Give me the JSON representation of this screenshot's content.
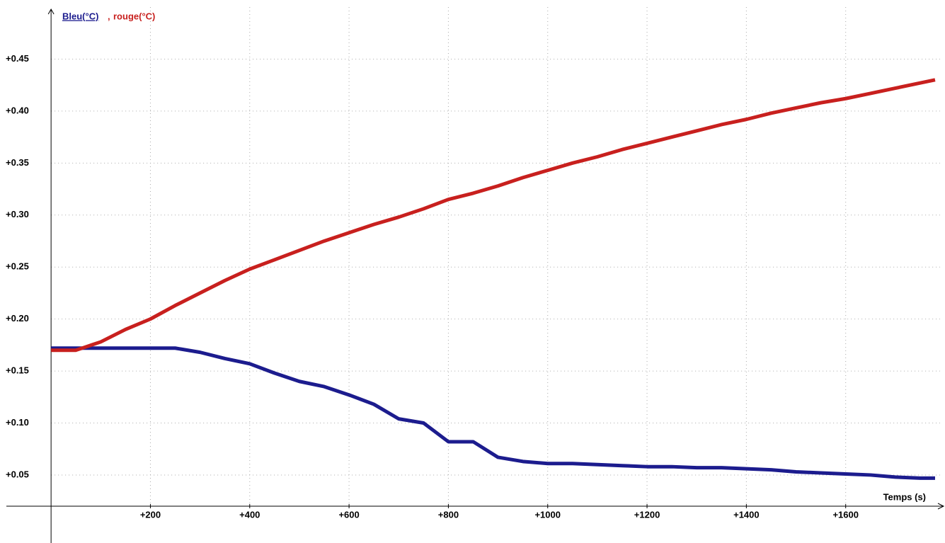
{
  "chart_data": {
    "type": "line",
    "xlabel": "Temps (s)",
    "ylabel_separator": ", ",
    "x": [
      0,
      50,
      100,
      150,
      200,
      250,
      300,
      350,
      400,
      450,
      500,
      550,
      600,
      650,
      700,
      750,
      800,
      850,
      900,
      950,
      1000,
      1050,
      1100,
      1150,
      1200,
      1250,
      1300,
      1350,
      1400,
      1450,
      1500,
      1550,
      1600,
      1650,
      1700,
      1750,
      1780
    ],
    "series": [
      {
        "name": "Bleu(°C)",
        "color": "#1c1c8e",
        "values": [
          0.172,
          0.172,
          0.172,
          0.172,
          0.172,
          0.172,
          0.168,
          0.162,
          0.157,
          0.148,
          0.14,
          0.135,
          0.127,
          0.118,
          0.104,
          0.1,
          0.082,
          0.082,
          0.067,
          0.063,
          0.061,
          0.061,
          0.06,
          0.059,
          0.058,
          0.058,
          0.057,
          0.057,
          0.056,
          0.055,
          0.053,
          0.052,
          0.051,
          0.05,
          0.048,
          0.047,
          0.047
        ]
      },
      {
        "name": "rouge(°C)",
        "color": "#c8201e",
        "values": [
          0.17,
          0.17,
          0.178,
          0.19,
          0.2,
          0.213,
          0.225,
          0.237,
          0.248,
          0.257,
          0.266,
          0.275,
          0.283,
          0.291,
          0.298,
          0.306,
          0.315,
          0.321,
          0.328,
          0.336,
          0.343,
          0.35,
          0.356,
          0.363,
          0.369,
          0.375,
          0.381,
          0.387,
          0.392,
          0.398,
          0.403,
          0.408,
          0.412,
          0.417,
          0.422,
          0.427,
          0.43
        ]
      }
    ],
    "xlim": [
      -90,
      1790
    ],
    "ylim": [
      0.02,
      0.5
    ],
    "xticks": [
      {
        "value": 200,
        "label": "+200"
      },
      {
        "value": 400,
        "label": "+400"
      },
      {
        "value": 600,
        "label": "+600"
      },
      {
        "value": 800,
        "label": "+800"
      },
      {
        "value": 1000,
        "label": "+1000"
      },
      {
        "value": 1200,
        "label": "+1200"
      },
      {
        "value": 1400,
        "label": "+1400"
      },
      {
        "value": 1600,
        "label": "+1600"
      }
    ],
    "yticks": [
      {
        "value": 0.05,
        "label": "+0.05"
      },
      {
        "value": 0.1,
        "label": "+0.10"
      },
      {
        "value": 0.15,
        "label": "+0.15"
      },
      {
        "value": 0.2,
        "label": "+0.20"
      },
      {
        "value": 0.25,
        "label": "+0.25"
      },
      {
        "value": 0.3,
        "label": "+0.30"
      },
      {
        "value": 0.35,
        "label": "+0.35"
      },
      {
        "value": 0.4,
        "label": "+0.40"
      },
      {
        "value": 0.45,
        "label": "+0.45"
      }
    ],
    "grid": true
  }
}
